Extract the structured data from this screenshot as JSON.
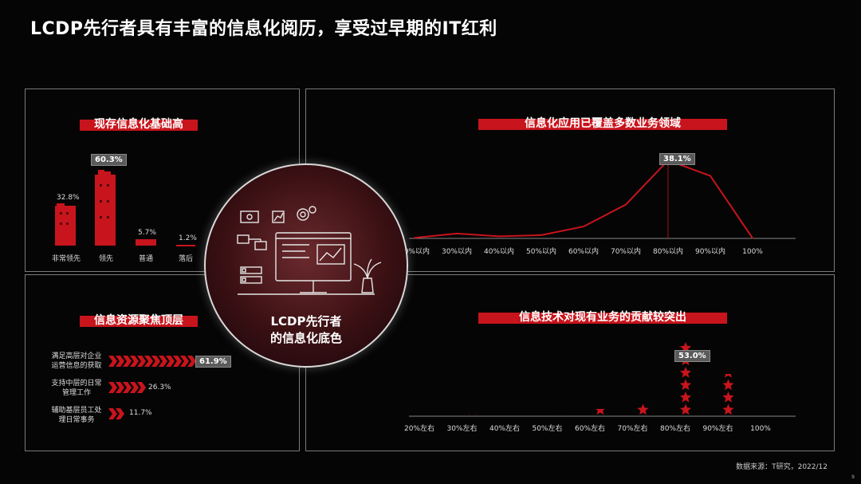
{
  "page": {
    "title": "LCDP先行者具有丰富的信息化阅历，享受过早期的IT红利",
    "footer": "数据来源：T研究，2022/12",
    "page_number": "9",
    "center_text_line1": "LCDP先行者",
    "center_text_line2": "的信息化底色"
  },
  "colors": {
    "accent": "#c8141c",
    "background": "#050505",
    "panel_border": "#7a7a7a"
  },
  "panel_tl": {
    "title": "现存信息化基础高",
    "bars": [
      {
        "label": "非常领先",
        "value_text": "32.8%",
        "value": 32.8
      },
      {
        "label": "领先",
        "value_text": "60.3%",
        "value": 60.3,
        "highlight": true
      },
      {
        "label": "普通",
        "value_text": "5.7%",
        "value": 5.7
      },
      {
        "label": "落后",
        "value_text": "1.2%",
        "value": 1.2
      }
    ]
  },
  "panel_tr": {
    "title": "信息化应用已覆盖多数业务领域",
    "peak_label": "38.1%"
  },
  "panel_bl": {
    "title": "信息资源聚焦顶层",
    "rows": [
      {
        "label_line1": "满足高层对企业",
        "label_line2": "运营信息的获取",
        "value_text": "61.9%",
        "value": 61.9,
        "highlight": true
      },
      {
        "label_line1": "支持中层的日常",
        "label_line2": "管理工作",
        "value_text": "26.3%",
        "value": 26.3
      },
      {
        "label_line1": "辅助基层员工处",
        "label_line2": "理日常事务",
        "value_text": "11.7%",
        "value": 11.7
      }
    ]
  },
  "panel_br": {
    "title": "信息技术对现有业务的贡献较突出",
    "peak_label": "53.0%"
  },
  "chart_data": [
    {
      "type": "bar",
      "title": "现存信息化基础高",
      "categories": [
        "非常领先",
        "领先",
        "普通",
        "落后"
      ],
      "values": [
        32.8,
        60.3,
        5.7,
        1.2
      ]
    },
    {
      "type": "line",
      "title": "信息化应用已覆盖多数业务领域",
      "categories": [
        "20%以内",
        "30%以内",
        "40%以内",
        "50%以内",
        "60%以内",
        "70%以内",
        "80%以内",
        "90%以内",
        "100%"
      ],
      "values": [
        0.3,
        2.4,
        1.0,
        1.6,
        5.8,
        16.5,
        38.1,
        30.5,
        0.1
      ],
      "annotations": [
        "38.1%"
      ]
    },
    {
      "type": "bar",
      "title": "信息资源聚焦顶层",
      "categories": [
        "满足高层对企业运营信息的获取",
        "支持中层的日常管理工作",
        "辅助基层员工处理日常事务"
      ],
      "values": [
        61.9,
        26.3,
        11.7
      ]
    },
    {
      "type": "scatter",
      "title": "信息技术对现有业务的贡献较突出",
      "categories": [
        "20%左右",
        "30%左右",
        "40%左右",
        "50%左右",
        "60%左右",
        "70%左右",
        "80%左右",
        "90%左右",
        "100%"
      ],
      "values": [
        0.2,
        1.5,
        0.3,
        1.2,
        5.0,
        8.5,
        53.0,
        30.0,
        0.2
      ],
      "annotations": [
        "53.0%"
      ]
    }
  ]
}
